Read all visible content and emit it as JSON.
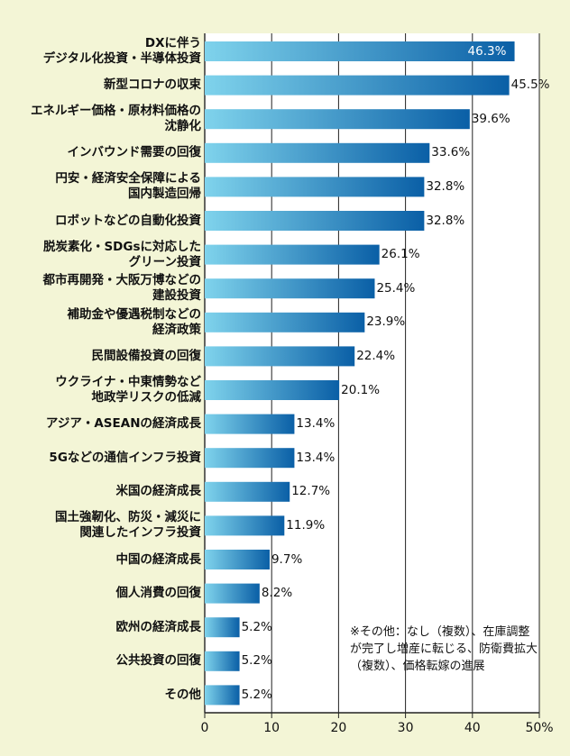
{
  "chart_data": {
    "type": "bar",
    "orientation": "horizontal",
    "categories": [
      "DXに伴う\nデジタル化投資・半導体投資",
      "新型コロナの収束",
      "エネルギー価格・原材料価格の\n沈静化",
      "インバウンド需要の回復",
      "円安・経済安全保障による\n国内製造回帰",
      "ロボットなどの自動化投資",
      "脱炭素化・SDGsに対応した\nグリーン投資",
      "都市再開発・大阪万博などの\n建設投資",
      "補助金や優遇税制などの\n経済政策",
      "民間設備投資の回復",
      "ウクライナ・中東情勢など\n地政学リスクの低減",
      "アジア・ASEANの経済成長",
      "5Gなどの通信インフラ投資",
      "米国の経済成長",
      "国土強靭化、防災・減災に\n関連したインフラ投資",
      "中国の経済成長",
      "個人消費の回復",
      "欧州の経済成長",
      "公共投資の回復",
      "その他"
    ],
    "values": [
      46.3,
      45.5,
      39.6,
      33.6,
      32.8,
      32.8,
      26.1,
      25.4,
      23.9,
      22.4,
      20.1,
      13.4,
      13.4,
      12.7,
      11.9,
      9.7,
      8.2,
      5.2,
      5.2,
      5.2
    ],
    "value_labels": [
      "46.3%",
      "45.5%",
      "39.6%",
      "33.6%",
      "32.8%",
      "32.8%",
      "26.1%",
      "25.4%",
      "23.9%",
      "22.4%",
      "20.1%",
      "13.4%",
      "13.4%",
      "12.7%",
      "11.9%",
      "9.7%",
      "8.2%",
      "5.2%",
      "5.2%",
      "5.2%"
    ],
    "xlim": [
      0,
      50
    ],
    "ticks": [
      "0",
      "10",
      "20",
      "30",
      "40",
      "50%"
    ],
    "grid": true,
    "bar_color_start": "#7fd3ec",
    "bar_color_end": "#0a5fa6",
    "note": "※その他：なし（複数）、在庫調整が完了し増産に転じる、防衛費拡大（複数）、価格転嫁の進展"
  }
}
